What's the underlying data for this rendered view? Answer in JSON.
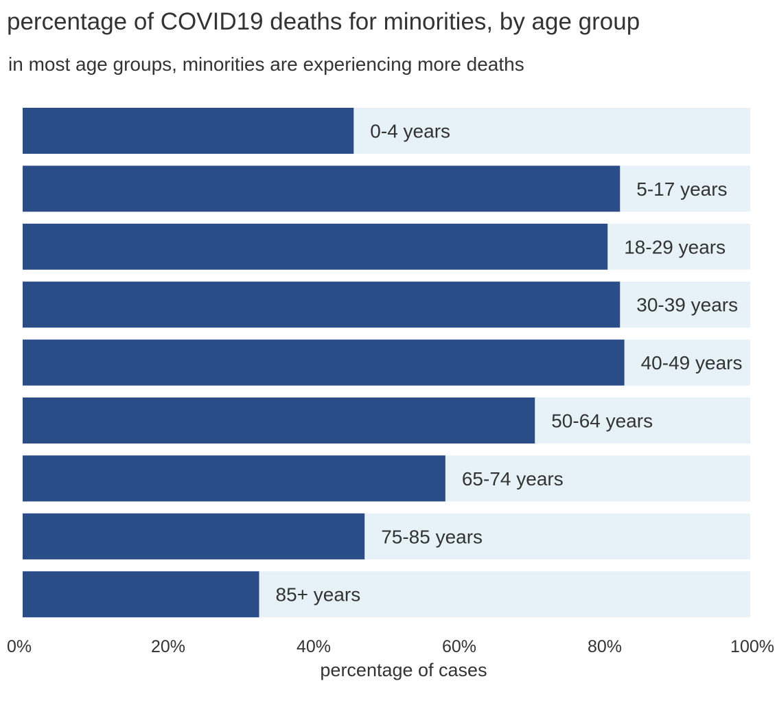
{
  "chart_data": {
    "type": "bar",
    "orientation": "horizontal",
    "stacked_percent": true,
    "title": "percentage of COVID19 deaths for minorities, by age group",
    "subtitle": "in most age groups, minorities are experiencing more deaths",
    "xlabel": "percentage of cases",
    "xlim": [
      0,
      100
    ],
    "xticks": [
      "0%",
      "20%",
      "40%",
      "60%",
      "80%",
      "100%"
    ],
    "categories": [
      "0-4 years",
      "5-17 years",
      "18-29 years",
      "30-39 years",
      "40-49 years",
      "50-64 years",
      "65-74 years",
      "75-85 years",
      "85+ years"
    ],
    "series": [
      {
        "values": [
          45.5,
          82.1,
          80.4,
          82.1,
          82.7,
          70.4,
          58.1,
          47.0,
          32.5
        ]
      }
    ],
    "colors": {
      "bar": "#2a4d87",
      "background_bar": "#e6f1f8",
      "text": "#333333"
    },
    "grid": false
  }
}
